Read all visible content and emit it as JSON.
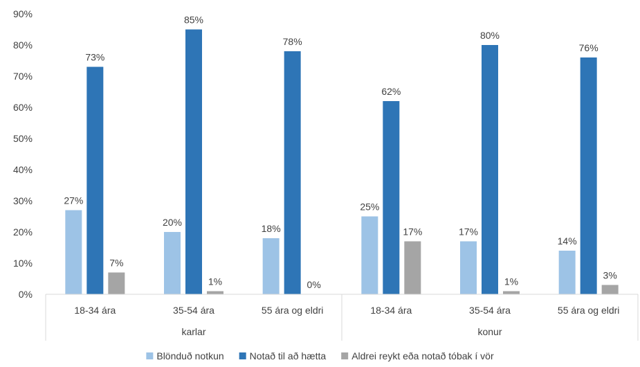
{
  "chart_data": {
    "type": "bar",
    "groups": [
      {
        "label": "karlar",
        "categories": [
          "18-34 ára",
          "35-54 ára",
          "55 ára og eldri"
        ]
      },
      {
        "label": "konur",
        "categories": [
          "18-34 ára",
          "35-54 ára",
          "55 ára og eldri"
        ]
      }
    ],
    "series": [
      {
        "name": "Blönduð notkun",
        "color": "#9DC3E6",
        "values": [
          27,
          20,
          18,
          25,
          17,
          14
        ],
        "labels": [
          "27%",
          "20%",
          "18%",
          "25%",
          "17%",
          "14%"
        ]
      },
      {
        "name": "Notað til að hætta",
        "color": "#2E75B6",
        "values": [
          73,
          85,
          78,
          62,
          80,
          76
        ],
        "labels": [
          "73%",
          "85%",
          "78%",
          "62%",
          "80%",
          "76%"
        ]
      },
      {
        "name": "Aldrei reykt eða notað tóbak í vör",
        "color": "#A5A5A5",
        "values": [
          7,
          1,
          0,
          17,
          1,
          3
        ],
        "labels": [
          "7%",
          "1%",
          "0%",
          "17%",
          "1%",
          "3%"
        ]
      }
    ],
    "ylim": [
      0,
      90
    ],
    "yticks": [
      "0%",
      "10%",
      "20%",
      "30%",
      "40%",
      "50%",
      "60%",
      "70%",
      "80%",
      "90%"
    ],
    "grid": false,
    "legend": "bottom",
    "title": "",
    "xlabel": "",
    "ylabel": ""
  }
}
